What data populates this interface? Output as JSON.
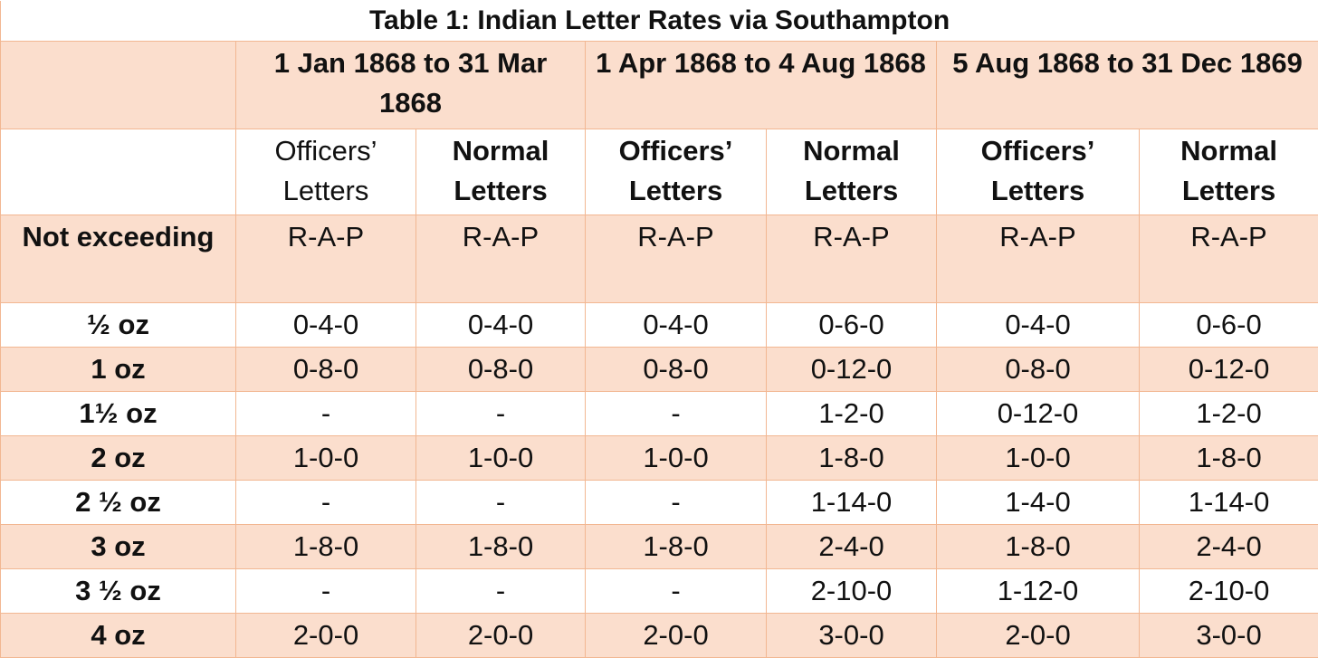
{
  "title": "Table 1: Indian Letter Rates via Southampton",
  "periods": [
    "1 Jan 1868 to 31 Mar 1868",
    "1 Apr 1868 to 4 Aug 1868",
    "5 Aug 1868 to 31 Dec 1869"
  ],
  "letter_types": [
    {
      "label": "Officers’ Letters",
      "bold": false
    },
    {
      "label": "Normal Letters",
      "bold": true
    },
    {
      "label": "Officers’ Letters",
      "bold": true
    },
    {
      "label": "Normal Letters",
      "bold": true
    },
    {
      "label": "Officers’ Letters",
      "bold": true
    },
    {
      "label": "Normal Letters",
      "bold": true
    }
  ],
  "row_header": "Not exceeding",
  "unit_label": "R-A-P",
  "rows": [
    {
      "weight": "½ oz",
      "rates": [
        "0-4-0",
        "0-4-0",
        "0-4-0",
        "0-6-0",
        "0-4-0",
        "0-6-0"
      ]
    },
    {
      "weight": "1 oz",
      "rates": [
        "0-8-0",
        "0-8-0",
        "0-8-0",
        "0-12-0",
        "0-8-0",
        "0-12-0"
      ]
    },
    {
      "weight": "1½ oz",
      "rates": [
        "-",
        "-",
        "-",
        "1-2-0",
        "0-12-0",
        "1-2-0"
      ]
    },
    {
      "weight": "2 oz",
      "rates": [
        "1-0-0",
        "1-0-0",
        "1-0-0",
        "1-8-0",
        "1-0-0",
        "1-8-0"
      ]
    },
    {
      "weight": "2 ½ oz",
      "rates": [
        "-",
        "-",
        "-",
        "1-14-0",
        "1-4-0",
        "1-14-0"
      ]
    },
    {
      "weight": "3 oz",
      "rates": [
        "1-8-0",
        "1-8-0",
        "1-8-0",
        "2-4-0",
        "1-8-0",
        "2-4-0"
      ]
    },
    {
      "weight": "3 ½ oz",
      "rates": [
        "-",
        "-",
        "-",
        "2-10-0",
        "1-12-0",
        "2-10-0"
      ]
    },
    {
      "weight": "4 oz",
      "rates": [
        "2-0-0",
        "2-0-0",
        "2-0-0",
        "3-0-0",
        "2-0-0",
        "3-0-0"
      ]
    }
  ],
  "colors": {
    "shade": "#fbdecd",
    "border": "#f2b792"
  }
}
